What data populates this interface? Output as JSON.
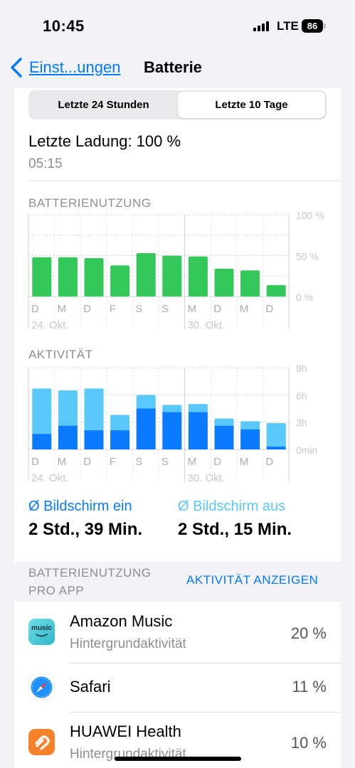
{
  "status_bar": {
    "time": "10:45",
    "network": "LTE",
    "battery_level": "86"
  },
  "nav": {
    "back_label": "Einst...ungen",
    "title": "Batterie"
  },
  "segmented": {
    "option_24h": "Letzte 24 Stunden",
    "option_10d": "Letzte 10 Tage",
    "selected": "option_10d"
  },
  "last_charge": {
    "label": "Letzte Ladung: 100 %",
    "time": "05:15"
  },
  "battery_chart": {
    "title": "BATTERIENUTZUNG",
    "y_tick_labels": [
      "100 %",
      "50 %",
      "0 %"
    ],
    "ylim": [
      0,
      100
    ],
    "day_labels": [
      "D",
      "M",
      "D",
      "F",
      "S",
      "S",
      "M",
      "D",
      "M",
      "D"
    ],
    "date_labels": [
      "24. Okt.",
      "30. Okt."
    ],
    "values": [
      48,
      48,
      47,
      38,
      53,
      50,
      49,
      34,
      32,
      14
    ],
    "color": "#34c759"
  },
  "activity_chart": {
    "title": "AKTIVITÄT",
    "y_tick_labels": [
      "9h",
      "6h",
      "3h",
      "0min"
    ],
    "ylim_hours": [
      0,
      9
    ],
    "day_labels": [
      "D",
      "M",
      "D",
      "F",
      "S",
      "S",
      "M",
      "D",
      "M",
      "D"
    ],
    "date_labels": [
      "24. Okt.",
      "30. Okt."
    ],
    "series": [
      {
        "name": "Bildschirm ein",
        "color": "#0a7aff",
        "values_hours": [
          1.7,
          2.6,
          2.1,
          2.1,
          4.5,
          4.1,
          4.1,
          2.6,
          2.2,
          0.3
        ]
      },
      {
        "name": "Bildschirm aus",
        "color": "#5ac8fa",
        "values_hours": [
          5.0,
          3.9,
          4.6,
          1.7,
          1.5,
          0.8,
          0.9,
          0.8,
          0.9,
          2.6
        ]
      }
    ]
  },
  "screen_stats": {
    "on_label": "Ø Bildschirm ein",
    "on_value": "2 Std., 39 Min.",
    "off_label": "Ø Bildschirm aus",
    "off_value": "2 Std., 15 Min.",
    "on_color": "#0a7aff",
    "off_color": "#5ac8fa"
  },
  "app_usage": {
    "header_line1": "BATTERIENUTZUNG",
    "header_line2": "PRO APP",
    "show_activity": "AKTIVITÄT ANZEIGEN",
    "apps": [
      {
        "name": "Amazon Music",
        "sub": "Hintergrundaktivität",
        "pct": "20 %",
        "icon": "amazon-music-icon",
        "icon_text": "music"
      },
      {
        "name": "Safari",
        "sub": "",
        "pct": "11 %",
        "icon": "safari-icon"
      },
      {
        "name": "HUAWEI Health",
        "sub": "Hintergrundaktivität",
        "pct": "10 %",
        "icon": "huawei-health-icon"
      }
    ]
  }
}
